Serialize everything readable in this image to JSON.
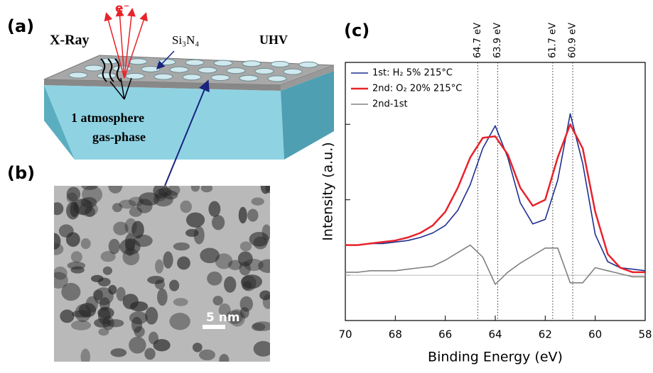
{
  "panels": {
    "a": {
      "label": "(a)",
      "xray": "X-Ray",
      "electron": "e⁻",
      "membrane": "Si₃N₄",
      "vacuum": "UHV",
      "gas_line1": "1 atmosphere",
      "gas_line2": "gas-phase"
    },
    "b": {
      "label": "(b)",
      "scale_bar": "5 nm"
    },
    "c": {
      "label": "(c)"
    }
  },
  "chart_data": {
    "type": "line",
    "x_label": "Binding Energy (eV)",
    "y_label": "Intensity (a.u.)",
    "x": [
      70,
      69.5,
      69,
      68.5,
      68,
      67.5,
      67,
      66.5,
      66,
      65.5,
      65,
      64.5,
      64,
      63.5,
      63,
      62.5,
      62,
      61.5,
      61,
      60.5,
      60,
      59.5,
      59,
      58.5,
      58
    ],
    "series": [
      {
        "name": "1st: H₂ 5% 215°C",
        "color": "#1f2f8f",
        "values": [
          0.2,
          0.2,
          0.21,
          0.21,
          0.22,
          0.23,
          0.25,
          0.28,
          0.33,
          0.43,
          0.6,
          0.84,
          0.99,
          0.78,
          0.48,
          0.34,
          0.37,
          0.63,
          1.07,
          0.74,
          0.27,
          0.09,
          0.05,
          0.04,
          0.03
        ]
      },
      {
        "name": "2nd: O₂ 20% 215°C",
        "color": "#e8222a",
        "values": [
          0.2,
          0.2,
          0.21,
          0.22,
          0.23,
          0.25,
          0.28,
          0.33,
          0.42,
          0.58,
          0.78,
          0.91,
          0.92,
          0.8,
          0.58,
          0.46,
          0.5,
          0.78,
          1.0,
          0.84,
          0.42,
          0.14,
          0.05,
          0.02,
          0.02
        ]
      },
      {
        "name": "2nd-1st",
        "color": "#808080",
        "values": [
          0.02,
          0.02,
          0.03,
          0.03,
          0.03,
          0.04,
          0.05,
          0.06,
          0.1,
          0.15,
          0.2,
          0.12,
          -0.06,
          0.02,
          0.08,
          0.13,
          0.18,
          0.18,
          -0.05,
          -0.05,
          0.05,
          0.03,
          0.01,
          -0.01,
          -0.01
        ]
      }
    ],
    "annotations": [
      {
        "x": 64.7,
        "label": "64.7 eV"
      },
      {
        "x": 63.9,
        "label": "63.9 eV"
      },
      {
        "x": 61.7,
        "label": "61.7 eV"
      },
      {
        "x": 60.9,
        "label": "60.9 eV"
      }
    ],
    "xlim": [
      70,
      58
    ],
    "xticks": [
      70,
      68,
      66,
      64,
      62,
      60,
      58
    ],
    "ylim": [
      -0.3,
      1.41
    ],
    "yticks": [
      0,
      0.5,
      1
    ],
    "legend": "upper left"
  }
}
